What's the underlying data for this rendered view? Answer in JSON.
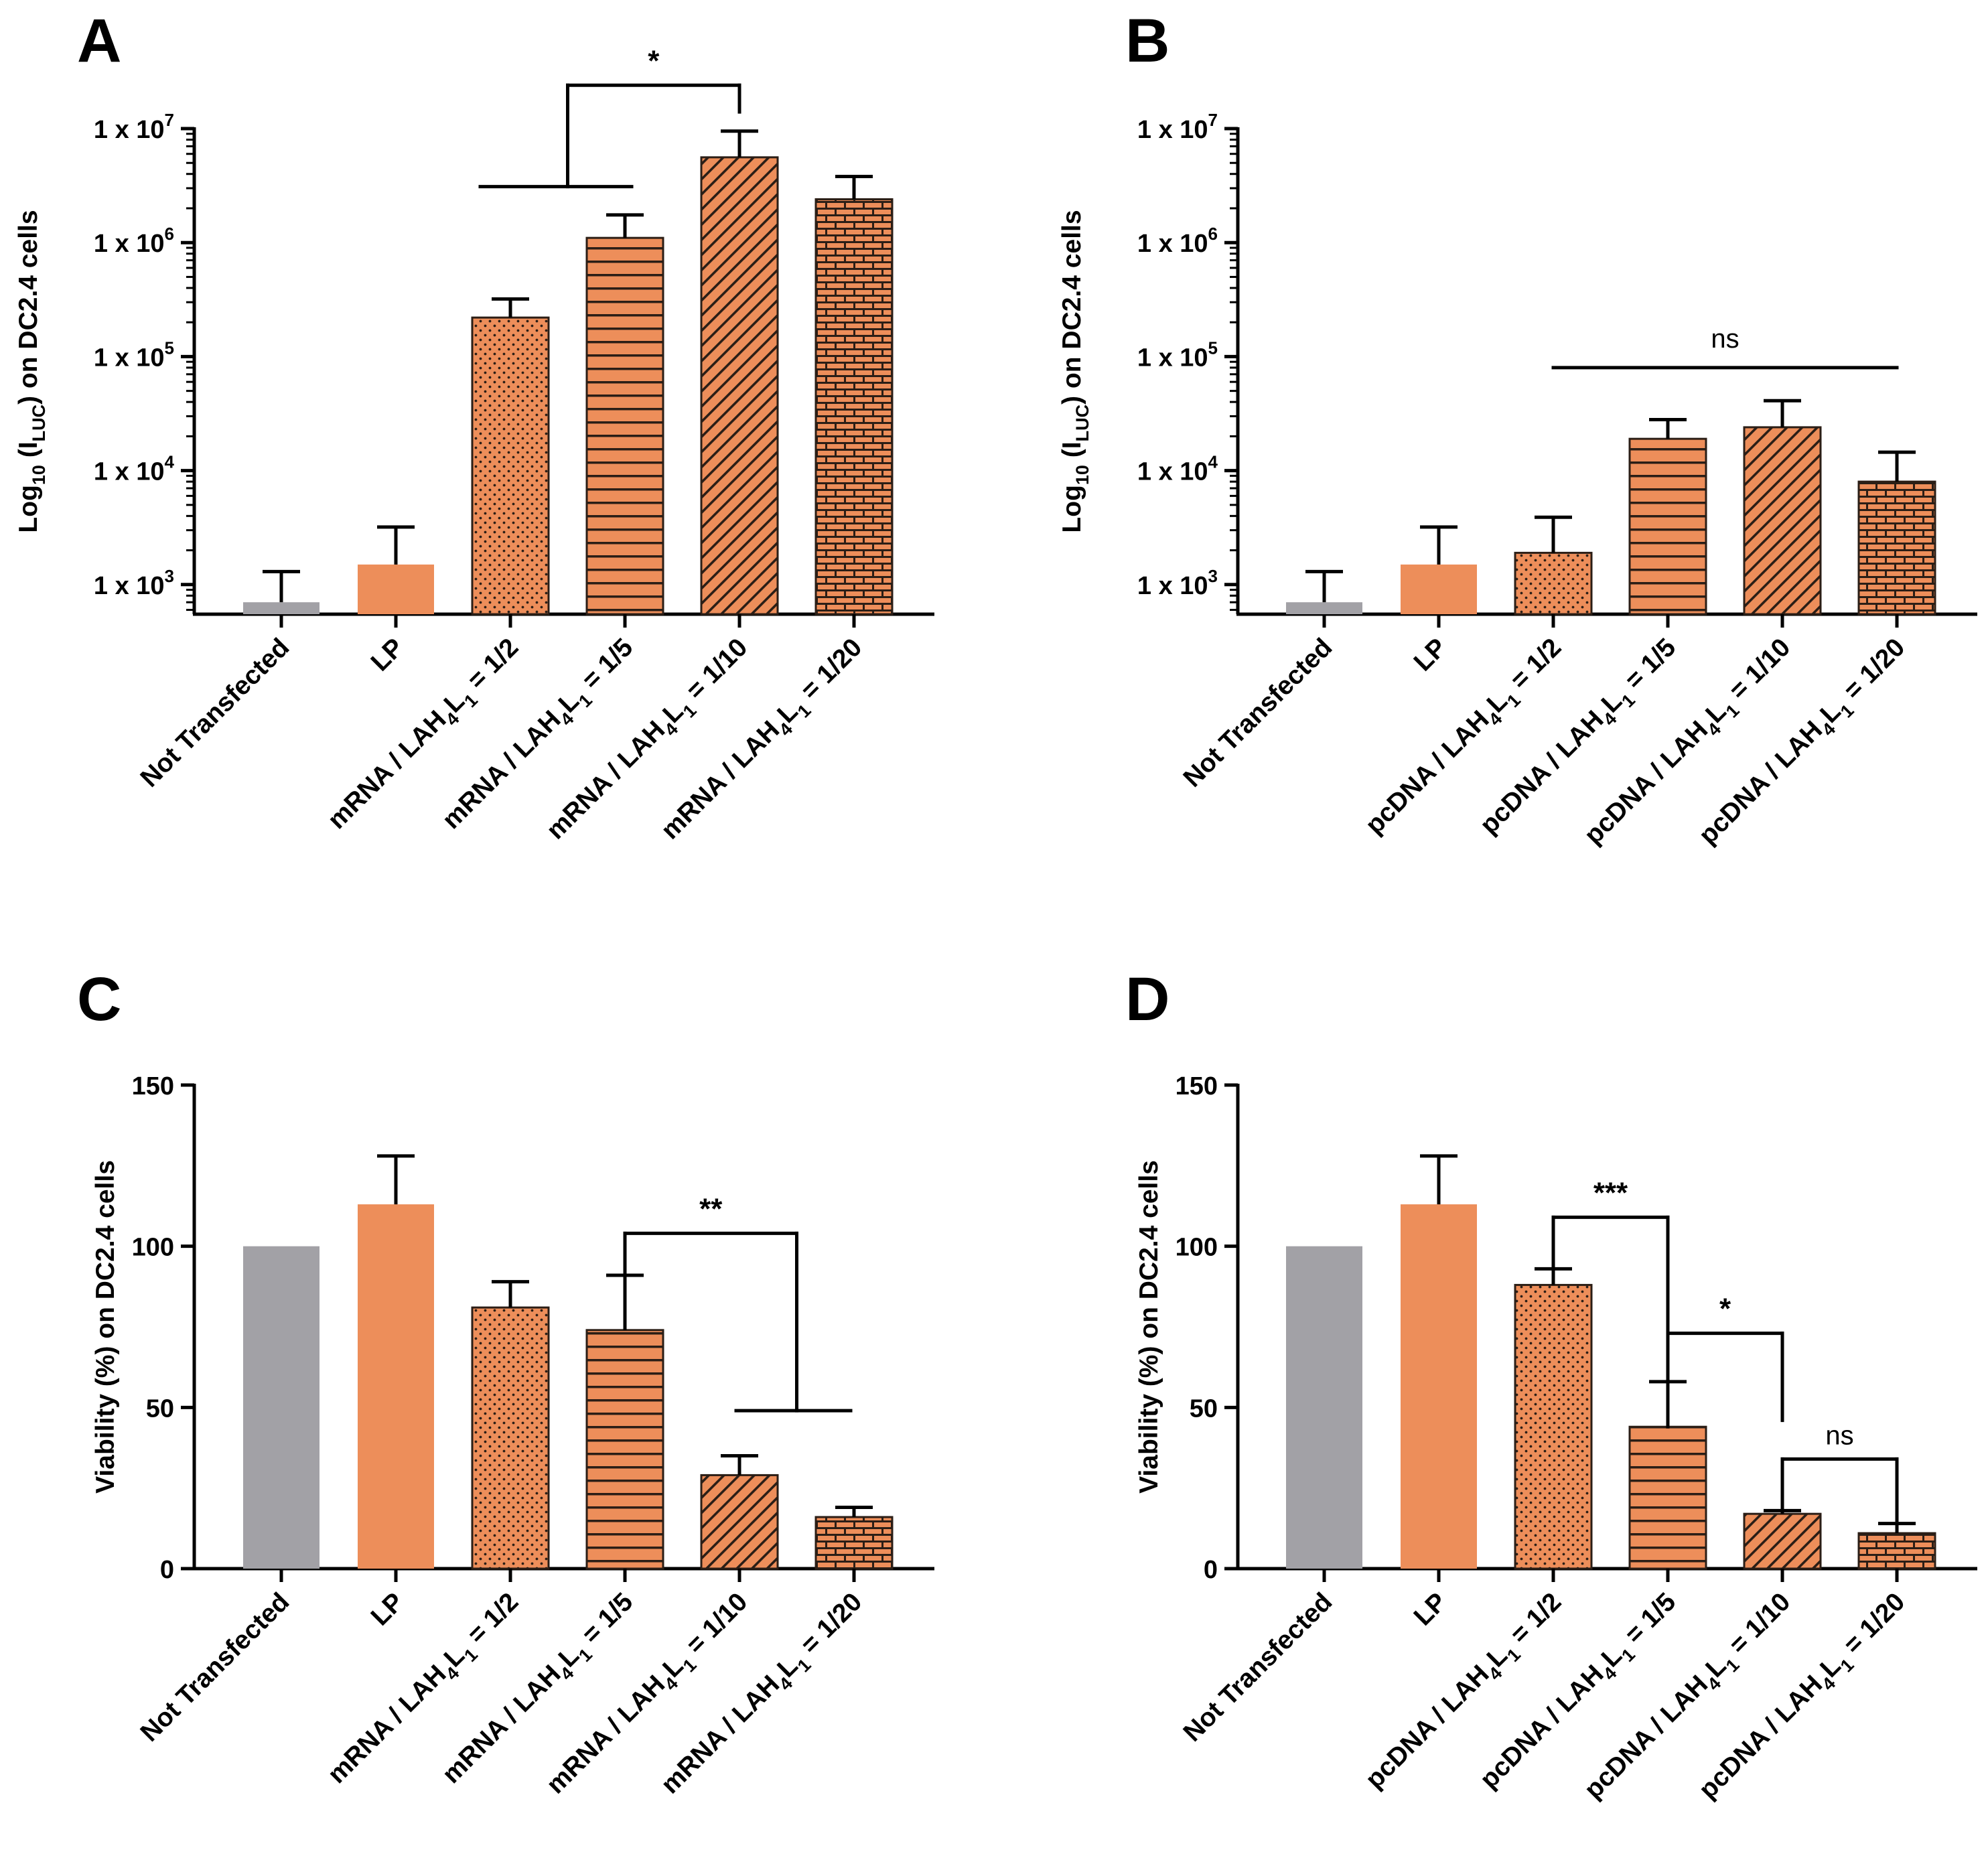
{
  "colors": {
    "grey": "#a2a1a6",
    "orange": "#ed8e5a",
    "pattern": "#2b1e16",
    "axis": "#000000"
  },
  "chart_data": [
    {
      "panel": "A",
      "type": "bar",
      "scale": "log",
      "ylabel_parts": [
        "Log",
        "10",
        " (I",
        "LUC",
        ") on DC2.4 cells"
      ],
      "yticks": [
        {
          "base": "1 x 10",
          "exp": "3",
          "value": 1000
        },
        {
          "base": "1 x 10",
          "exp": "4",
          "value": 10000
        },
        {
          "base": "1 x 10",
          "exp": "5",
          "value": 100000
        },
        {
          "base": "1 x 10",
          "exp": "6",
          "value": 1000000
        },
        {
          "base": "1 x 10",
          "exp": "7",
          "value": 10000000
        }
      ],
      "ylim": [
        550,
        10000000
      ],
      "categories": [
        {
          "parts": [
            [
              "Not Transfected",
              ""
            ]
          ]
        },
        {
          "parts": [
            [
              "LP",
              ""
            ]
          ]
        },
        {
          "parts": [
            [
              "mRNA / LAH",
              ""
            ],
            [
              "4",
              "sub"
            ],
            [
              "L",
              ""
            ],
            [
              "1",
              "sub"
            ],
            [
              " = 1/2",
              ""
            ]
          ]
        },
        {
          "parts": [
            [
              "mRNA / LAH",
              ""
            ],
            [
              "4",
              "sub"
            ],
            [
              "L",
              ""
            ],
            [
              "1",
              "sub"
            ],
            [
              " = 1/5",
              ""
            ]
          ]
        },
        {
          "parts": [
            [
              "mRNA / LAH",
              ""
            ],
            [
              "4",
              "sub"
            ],
            [
              "L",
              ""
            ],
            [
              "1",
              "sub"
            ],
            [
              " = 1/10",
              ""
            ]
          ]
        },
        {
          "parts": [
            [
              "mRNA / LAH",
              ""
            ],
            [
              "4",
              "sub"
            ],
            [
              "L",
              ""
            ],
            [
              "1",
              "sub"
            ],
            [
              " = 1/20",
              ""
            ]
          ]
        }
      ],
      "values": [
        700,
        1500,
        220000,
        1100000,
        5600000,
        2400000
      ],
      "errors": [
        1300,
        3200,
        320000,
        1750000,
        9500000,
        3800000
      ],
      "patterns": [
        "none",
        "none",
        "dots",
        "hlines",
        "diag",
        "brick"
      ],
      "fills": [
        "grey",
        "orange",
        "orange",
        "orange",
        "orange",
        "orange"
      ],
      "brackets": [
        {
          "type": "group-to-bar",
          "group": [
            2,
            3
          ],
          "target": 4,
          "group_y": 3100000,
          "top_y": 24000000,
          "target_y": 14000000,
          "label": "*"
        }
      ]
    },
    {
      "panel": "B",
      "type": "bar",
      "scale": "log",
      "ylabel_parts": [
        "Log",
        "10",
        " (I",
        "LUC",
        ") on DC2.4 cells"
      ],
      "yticks": [
        {
          "base": "1 x 10",
          "exp": "3",
          "value": 1000
        },
        {
          "base": "1 x 10",
          "exp": "4",
          "value": 10000
        },
        {
          "base": "1 x 10",
          "exp": "5",
          "value": 100000
        },
        {
          "base": "1 x 10",
          "exp": "6",
          "value": 1000000
        },
        {
          "base": "1 x 10",
          "exp": "7",
          "value": 10000000
        }
      ],
      "ylim": [
        550,
        10000000
      ],
      "categories": [
        {
          "parts": [
            [
              "Not Transfected",
              ""
            ]
          ]
        },
        {
          "parts": [
            [
              "LP",
              ""
            ]
          ]
        },
        {
          "parts": [
            [
              "pcDNA / LAH",
              ""
            ],
            [
              "4",
              "sub"
            ],
            [
              "L",
              ""
            ],
            [
              "1",
              "sub"
            ],
            [
              " = 1/2",
              ""
            ]
          ]
        },
        {
          "parts": [
            [
              "pcDNA / LAH",
              ""
            ],
            [
              "4",
              "sub"
            ],
            [
              "L",
              ""
            ],
            [
              "1",
              "sub"
            ],
            [
              " = 1/5",
              ""
            ]
          ]
        },
        {
          "parts": [
            [
              "pcDNA / LAH",
              ""
            ],
            [
              "4",
              "sub"
            ],
            [
              "L",
              ""
            ],
            [
              "1",
              "sub"
            ],
            [
              " = 1/10",
              ""
            ]
          ]
        },
        {
          "parts": [
            [
              "pcDNA / LAH",
              ""
            ],
            [
              "4",
              "sub"
            ],
            [
              "L",
              ""
            ],
            [
              "1",
              "sub"
            ],
            [
              " = 1/20",
              ""
            ]
          ]
        }
      ],
      "values": [
        700,
        1500,
        1900,
        19000,
        24000,
        8000
      ],
      "errors": [
        1300,
        3200,
        3900,
        28000,
        41000,
        14500
      ],
      "patterns": [
        "none",
        "none",
        "dots",
        "hlines",
        "diag",
        "brick"
      ],
      "fills": [
        "grey",
        "orange",
        "orange",
        "orange",
        "orange",
        "orange"
      ],
      "brackets": [
        {
          "type": "line",
          "from": 2,
          "to": 5,
          "y": 80000,
          "label": "ns"
        }
      ]
    },
    {
      "panel": "C",
      "type": "bar",
      "scale": "linear",
      "ylabel_parts": [
        "Viability (%) on DC2.4 cells"
      ],
      "yticks": [
        {
          "base": "0",
          "exp": "",
          "value": 0
        },
        {
          "base": "50",
          "exp": "",
          "value": 50
        },
        {
          "base": "100",
          "exp": "",
          "value": 100
        },
        {
          "base": "150",
          "exp": "",
          "value": 150
        }
      ],
      "ylim": [
        0,
        150
      ],
      "categories": [
        {
          "parts": [
            [
              "Not Transfected",
              ""
            ]
          ]
        },
        {
          "parts": [
            [
              "LP",
              ""
            ]
          ]
        },
        {
          "parts": [
            [
              "mRNA / LAH",
              ""
            ],
            [
              "4",
              "sub"
            ],
            [
              "L",
              ""
            ],
            [
              "1",
              "sub"
            ],
            [
              " = 1/2",
              ""
            ]
          ]
        },
        {
          "parts": [
            [
              "mRNA / LAH",
              ""
            ],
            [
              "4",
              "sub"
            ],
            [
              "L",
              ""
            ],
            [
              "1",
              "sub"
            ],
            [
              " = 1/5",
              ""
            ]
          ]
        },
        {
          "parts": [
            [
              "mRNA / LAH",
              ""
            ],
            [
              "4",
              "sub"
            ],
            [
              "L",
              ""
            ],
            [
              "1",
              "sub"
            ],
            [
              " = 1/10",
              ""
            ]
          ]
        },
        {
          "parts": [
            [
              "mRNA / LAH",
              ""
            ],
            [
              "4",
              "sub"
            ],
            [
              "L",
              ""
            ],
            [
              "1",
              "sub"
            ],
            [
              " = 1/20",
              ""
            ]
          ]
        }
      ],
      "values": [
        100,
        113,
        81,
        74,
        29,
        16
      ],
      "errors": [
        100,
        128,
        89,
        91,
        35,
        19
      ],
      "patterns": [
        "none",
        "none",
        "dots",
        "hlines",
        "diag",
        "brick"
      ],
      "fills": [
        "grey",
        "orange",
        "orange",
        "orange",
        "orange",
        "orange"
      ],
      "brackets": [
        {
          "type": "bar-to-group",
          "source": 3,
          "group": [
            4,
            5
          ],
          "source_y": 92,
          "top_y": 104,
          "group_y": 49,
          "label": "**"
        }
      ]
    },
    {
      "panel": "D",
      "type": "bar",
      "scale": "linear",
      "ylabel_parts": [
        "Viability (%) on DC2.4 cells"
      ],
      "yticks": [
        {
          "base": "0",
          "exp": "",
          "value": 0
        },
        {
          "base": "50",
          "exp": "",
          "value": 50
        },
        {
          "base": "100",
          "exp": "",
          "value": 100
        },
        {
          "base": "150",
          "exp": "",
          "value": 150
        }
      ],
      "ylim": [
        0,
        150
      ],
      "categories": [
        {
          "parts": [
            [
              "Not Transfected",
              ""
            ]
          ]
        },
        {
          "parts": [
            [
              "LP",
              ""
            ]
          ]
        },
        {
          "parts": [
            [
              "pcDNA / LAH",
              ""
            ],
            [
              "4",
              "sub"
            ],
            [
              "L",
              ""
            ],
            [
              "1",
              "sub"
            ],
            [
              " = 1/2",
              ""
            ]
          ]
        },
        {
          "parts": [
            [
              "pcDNA / LAH",
              ""
            ],
            [
              "4",
              "sub"
            ],
            [
              "L",
              ""
            ],
            [
              "1",
              "sub"
            ],
            [
              " = 1/5",
              ""
            ]
          ]
        },
        {
          "parts": [
            [
              "pcDNA / LAH",
              ""
            ],
            [
              "4",
              "sub"
            ],
            [
              "L",
              ""
            ],
            [
              "1",
              "sub"
            ],
            [
              " = 1/10",
              ""
            ]
          ]
        },
        {
          "parts": [
            [
              "pcDNA / LAH",
              ""
            ],
            [
              "4",
              "sub"
            ],
            [
              "L",
              ""
            ],
            [
              "1",
              "sub"
            ],
            [
              " = 1/20",
              ""
            ]
          ]
        }
      ],
      "values": [
        100,
        113,
        88,
        44,
        17,
        11
      ],
      "errors": [
        100,
        128,
        93,
        58,
        18,
        14
      ],
      "patterns": [
        "none",
        "none",
        "dots",
        "hlines",
        "diag",
        "brick"
      ],
      "fills": [
        "grey",
        "orange",
        "orange",
        "orange",
        "orange",
        "orange"
      ],
      "brackets": [
        {
          "type": "pair",
          "from": 2,
          "to": 3,
          "from_y": 94,
          "to_y": 44,
          "top_y": 109,
          "label": "***"
        },
        {
          "type": "pair",
          "from": 3,
          "to": 4,
          "from_y": 60,
          "to_y": 46,
          "top_y": 73,
          "label": "*"
        },
        {
          "type": "pair",
          "from": 4,
          "to": 5,
          "from_y": 19,
          "to_y": 15,
          "top_y": 34,
          "label": "ns"
        }
      ]
    }
  ]
}
